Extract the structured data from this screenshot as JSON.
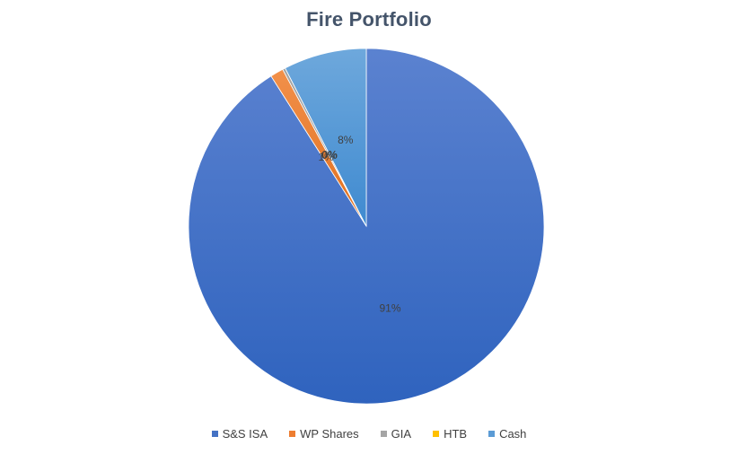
{
  "chart_data": {
    "type": "pie",
    "title": "Fire Portfolio",
    "legend_position": "bottom",
    "slices": [
      {
        "name": "S&S ISA",
        "value": 91,
        "label": "91%",
        "color": "#4472c4"
      },
      {
        "name": "WP Shares",
        "value": 1.2,
        "label": "1%",
        "color": "#ed7d31"
      },
      {
        "name": "GIA",
        "value": 0.25,
        "label": "0%",
        "color": "#a5a5a5"
      },
      {
        "name": "HTB",
        "value": 0.0,
        "label": "0%",
        "color": "#ffc000"
      },
      {
        "name": "Cash",
        "value": 7.55,
        "label": "8%",
        "color": "#5b9bd5"
      }
    ]
  }
}
